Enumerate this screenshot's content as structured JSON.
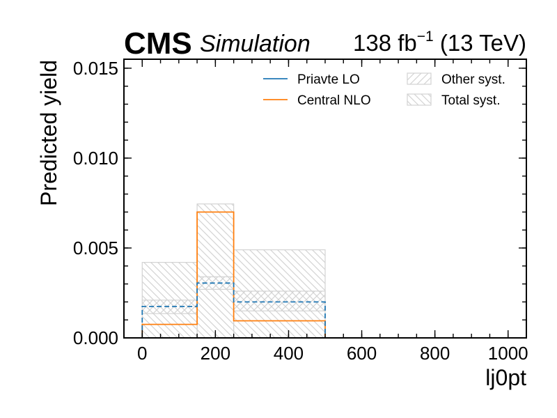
{
  "header": {
    "experiment": "CMS",
    "tag": "Simulation",
    "lumi_value": "138 fb",
    "lumi_exp": "−1",
    "energy": " (13 TeV)"
  },
  "colors": {
    "lo": "#1f77b4",
    "nlo": "#ff7f0e",
    "syst_edge": "#d3d3d3",
    "axis": "#000000"
  },
  "chart_data": {
    "type": "histogram",
    "xlabel": "lj0pt",
    "ylabel": "Predicted yield",
    "xlim": [
      -50,
      1050
    ],
    "ylim": [
      0,
      0.0155
    ],
    "xticks": [
      0,
      200,
      400,
      600,
      800,
      1000
    ],
    "xtick_labels": [
      "0",
      "200",
      "400",
      "600",
      "800",
      "1000"
    ],
    "xminor_step": 50,
    "yticks": [
      0,
      0.005,
      0.01,
      0.015
    ],
    "ytick_labels": [
      "0.000",
      "0.005",
      "0.010",
      "0.015"
    ],
    "yminor_step": 0.001,
    "bin_edges": [
      0,
      150,
      250,
      500
    ],
    "series": [
      {
        "name": "Priavte LO",
        "style": "dashed",
        "values": [
          0.00175,
          0.00305,
          0.002
        ]
      },
      {
        "name": "Central NLO",
        "style": "solid",
        "values": [
          0.00075,
          0.007,
          0.00095
        ]
      }
    ],
    "bands": [
      {
        "name": "Other syst.",
        "hatch": "forward",
        "low": [
          0.00135,
          0.0027,
          0.0015
        ],
        "high": [
          0.0021,
          0.0034,
          0.0026
        ]
      },
      {
        "name": "Total syst.",
        "hatch": "back",
        "low": [
          0.0,
          0.0,
          0.0
        ],
        "high": [
          0.0042,
          0.00745,
          0.0049
        ]
      }
    ],
    "legend_position": "upper-right"
  }
}
